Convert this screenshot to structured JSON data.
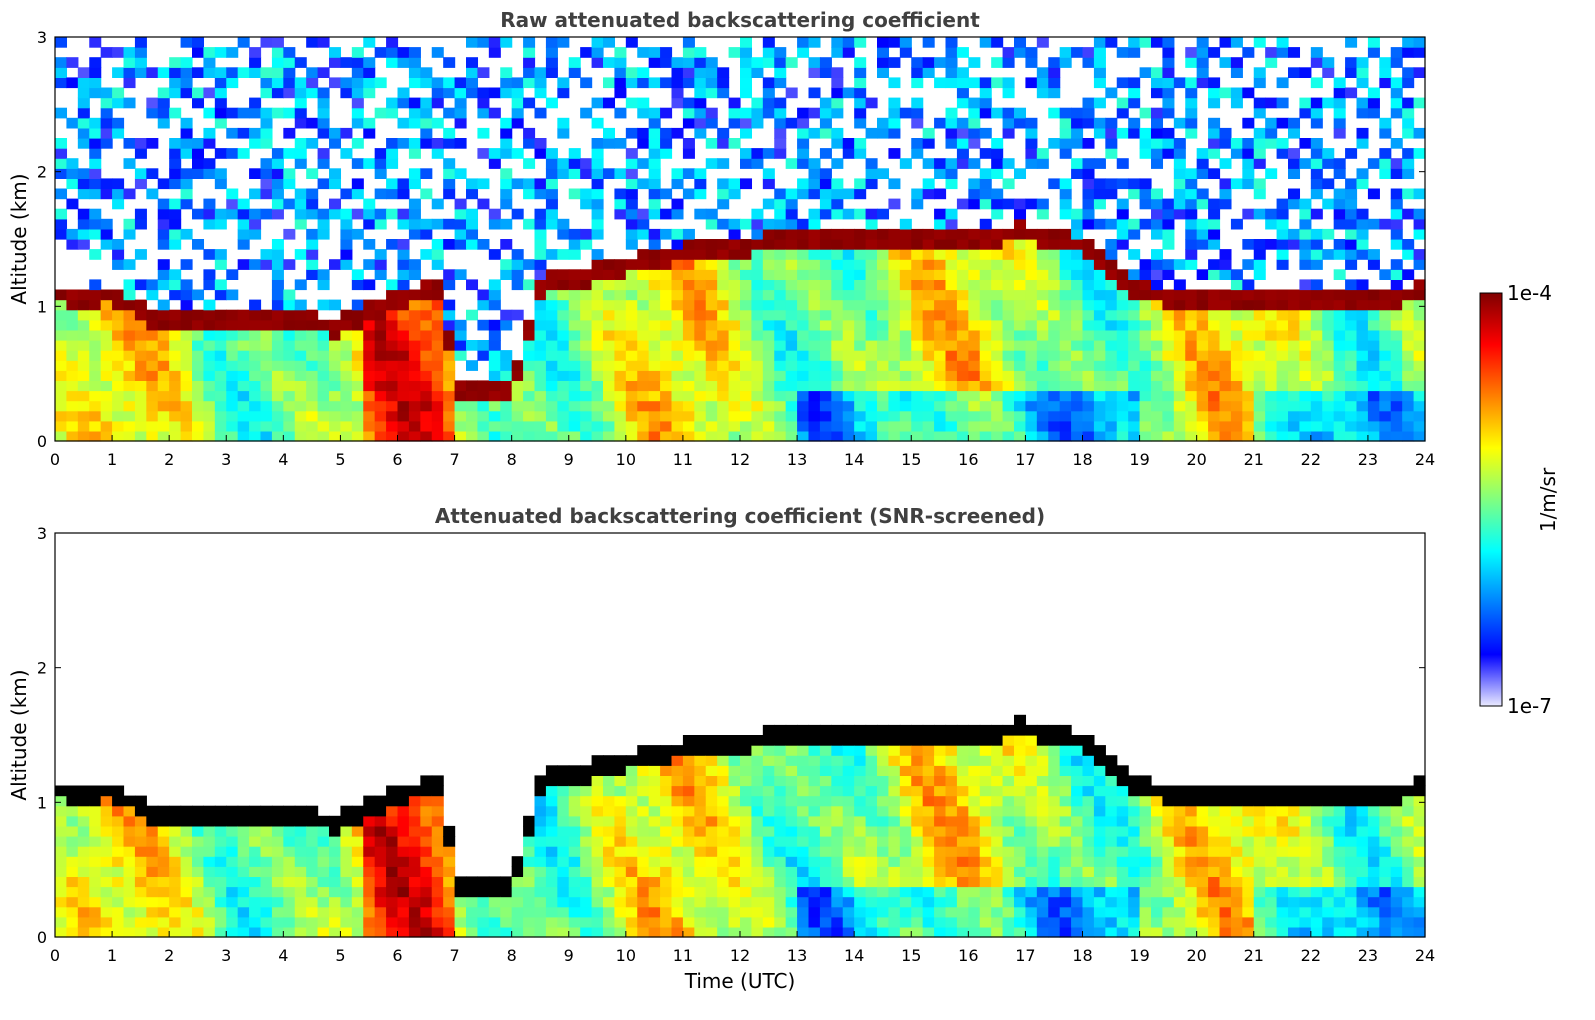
{
  "colors": {
    "jet_stops": [
      "#eaeaff",
      "#0000ff",
      "#0080ff",
      "#00ffff",
      "#80ff80",
      "#ffff00",
      "#ff8000",
      "#ff0000",
      "#800000"
    ],
    "saturated": "#000000",
    "background": "#ffffff"
  },
  "colorbar": {
    "min_label": "1e-7",
    "max_label": "1e-4",
    "units": "1/m/sr",
    "min": 1e-07,
    "max": 0.0001,
    "scale": "log"
  },
  "chart_data": [
    {
      "type": "heatmap",
      "title": "Raw attenuated backscattering coefficient",
      "xlabel": "",
      "ylabel": "Altitude (km)",
      "xlim": [
        0,
        24
      ],
      "ylim": [
        0,
        3
      ],
      "x_ticks": [
        "0",
        "1",
        "2",
        "3",
        "4",
        "5",
        "6",
        "7",
        "8",
        "9",
        "10",
        "11",
        "12",
        "13",
        "14",
        "15",
        "16",
        "17",
        "18",
        "19",
        "20",
        "21",
        "22",
        "23",
        "24"
      ],
      "y_ticks": [
        "0",
        "1",
        "2",
        "3"
      ],
      "saturation_color": "none",
      "cloud_base": {
        "x": [
          0,
          0.5,
          1,
          1.5,
          2,
          3,
          4,
          5,
          6,
          6.8,
          7,
          8,
          8.5,
          9,
          10,
          11,
          12,
          13,
          14,
          15,
          16,
          17,
          18,
          19,
          20,
          21,
          22,
          23,
          24
        ],
        "top_km": [
          1.15,
          1.1,
          1.15,
          1.0,
          0.95,
          0.95,
          0.95,
          0.9,
          1.1,
          1.2,
          0.45,
          0.45,
          1.2,
          1.25,
          1.35,
          1.45,
          1.5,
          1.55,
          1.55,
          1.55,
          1.55,
          1.6,
          1.5,
          1.15,
          1.1,
          1.1,
          1.1,
          1.1,
          1.15
        ]
      }
    },
    {
      "type": "heatmap",
      "title": "Attenuated backscattering coefficient (SNR-screened)",
      "xlabel": "Time (UTC)",
      "ylabel": "Altitude (km)",
      "xlim": [
        0,
        24
      ],
      "ylim": [
        0,
        3
      ],
      "x_ticks": [
        "0",
        "1",
        "2",
        "3",
        "4",
        "5",
        "6",
        "7",
        "8",
        "9",
        "10",
        "11",
        "12",
        "13",
        "14",
        "15",
        "16",
        "17",
        "18",
        "19",
        "20",
        "21",
        "22",
        "23",
        "24"
      ],
      "y_ticks": [
        "0",
        "1",
        "2",
        "3"
      ],
      "saturation_color": "black",
      "cloud_base": {
        "x": [
          0,
          0.5,
          1,
          1.5,
          2,
          3,
          4,
          5,
          6,
          6.8,
          7,
          8,
          8.5,
          9,
          10,
          11,
          12,
          13,
          14,
          15,
          16,
          17,
          18,
          19,
          20,
          21,
          22,
          23,
          24
        ],
        "top_km": [
          1.15,
          1.1,
          1.15,
          1.0,
          0.95,
          0.95,
          0.95,
          0.9,
          1.1,
          1.2,
          0.45,
          0.45,
          1.2,
          1.25,
          1.35,
          1.45,
          1.5,
          1.55,
          1.55,
          1.55,
          1.55,
          1.6,
          1.5,
          1.15,
          1.1,
          1.1,
          1.1,
          1.1,
          1.15
        ]
      }
    }
  ]
}
